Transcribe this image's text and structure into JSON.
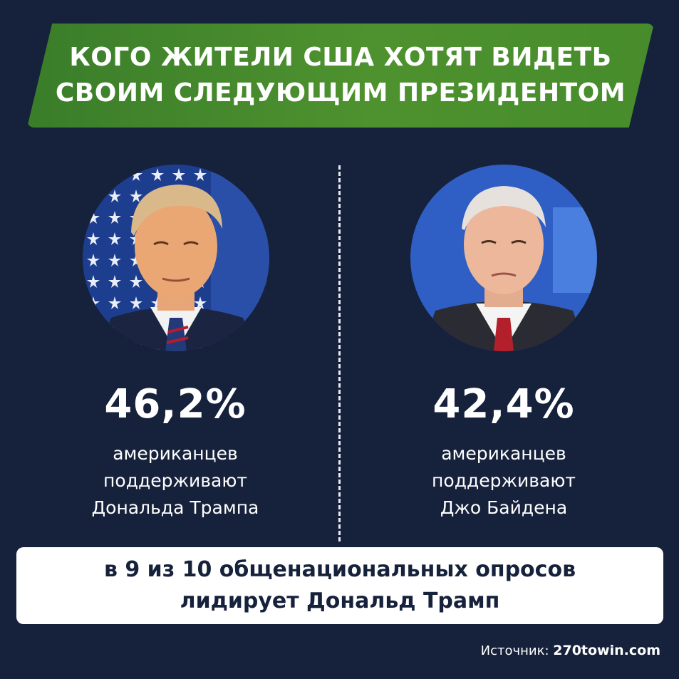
{
  "header": {
    "title_line1": "КОГО ЖИТЕЛИ США ХОТЯТ ВИДЕТЬ",
    "title_line2": "СВОИМ СЛЕДУЮЩИМ ПРЕЗИДЕНТОМ"
  },
  "candidates": [
    {
      "percent": "46,2%",
      "line1": "американцев",
      "line2": "поддерживают",
      "line3": "Дональда Трампа"
    },
    {
      "percent": "42,4%",
      "line1": "американцев",
      "line2": "поддерживают",
      "line3": "Джо Байдена"
    }
  ],
  "footer": {
    "line1": "в 9 из 10 общенациональных опросов",
    "line2": "лидирует Дональд Трамп"
  },
  "source": {
    "label": "Источник:",
    "site": "270towin.com"
  },
  "colors": {
    "background": "#16213b",
    "banner": "#4e922f",
    "text": "#ffffff",
    "footer_text": "#16213b"
  },
  "icons": [
    "portrait-trump",
    "portrait-biden"
  ]
}
